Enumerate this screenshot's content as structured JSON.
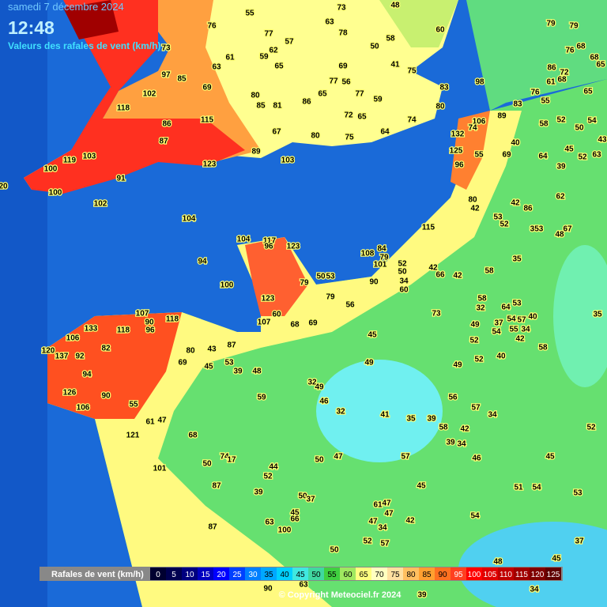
{
  "header": {
    "date": "samedi 7 décembre 2024",
    "time": "12:48",
    "subtitle": "Valeurs des rafales de vent (km/h)"
  },
  "stations": [
    79,
    79,
    48,
    73,
    55,
    76,
    63,
    77,
    78,
    57,
    58,
    60,
    68,
    76,
    68,
    65,
    62,
    59,
    61,
    50,
    69,
    65,
    63,
    41,
    86,
    61,
    72,
    68,
    75,
    97,
    85,
    77,
    56,
    98,
    83,
    76,
    69,
    65,
    77,
    55,
    65,
    102,
    73,
    80,
    85,
    81,
    86,
    59,
    80,
    83,
    118,
    72,
    65,
    74,
    89,
    106,
    52,
    54,
    50,
    58,
    86,
    115,
    67,
    80,
    75,
    64,
    132,
    74,
    40,
    45,
    43,
    87,
    103,
    119,
    89,
    103,
    125,
    55,
    69,
    64,
    52,
    63,
    123,
    100,
    91,
    96,
    39,
    100,
    20,
    102,
    80,
    42,
    62,
    53,
    42,
    86,
    104,
    52,
    353,
    48,
    67,
    115,
    104,
    117,
    96,
    123,
    84,
    108,
    79,
    35,
    94,
    52,
    101,
    50,
    42,
    66,
    42,
    58,
    100,
    79,
    50,
    53,
    90,
    34,
    60,
    123,
    79,
    58,
    56,
    32,
    64,
    53,
    40,
    35,
    60,
    73,
    107,
    90,
    118,
    96,
    118,
    133,
    107,
    68,
    69,
    49,
    37,
    54,
    57,
    106,
    55,
    34,
    54,
    82,
    80,
    43,
    87,
    45,
    42,
    52,
    120,
    137,
    92,
    58,
    53,
    69,
    45,
    49,
    40,
    52,
    49,
    39,
    48,
    94,
    32,
    49,
    126,
    90,
    59,
    46,
    56,
    106,
    55,
    57,
    32,
    41,
    35,
    39,
    34,
    61,
    47,
    58,
    42,
    52,
    121,
    68,
    39,
    34,
    50,
    47,
    57,
    46,
    45,
    74,
    17,
    50,
    44,
    101,
    52,
    87,
    45,
    51,
    54,
    53,
    39,
    50,
    37,
    61,
    47,
    47,
    42,
    45,
    66,
    63,
    47,
    34,
    54,
    87,
    100,
    37,
    52,
    57,
    50,
    48,
    45,
    90,
    63,
    39,
    34
  ],
  "legend": {
    "title": "Rafales de vent (km/h)",
    "steps": [
      {
        "value": 0,
        "color": "#000030"
      },
      {
        "value": 5,
        "color": "#000050"
      },
      {
        "value": 10,
        "color": "#000080"
      },
      {
        "value": 15,
        "color": "#0000c0"
      },
      {
        "value": 20,
        "color": "#0000ff"
      },
      {
        "value": 25,
        "color": "#0040ff"
      },
      {
        "value": 30,
        "color": "#0080ff"
      },
      {
        "value": 35,
        "color": "#00a8ff"
      },
      {
        "value": 40,
        "color": "#00d0ff"
      },
      {
        "value": 45,
        "color": "#40e8e0"
      },
      {
        "value": 50,
        "color": "#40d8a0"
      },
      {
        "value": 55,
        "color": "#40d040"
      },
      {
        "value": 60,
        "color": "#a0e860"
      },
      {
        "value": 65,
        "color": "#ffff80"
      },
      {
        "value": 70,
        "color": "#ffffc0"
      },
      {
        "value": 75,
        "color": "#ffe0a0"
      },
      {
        "value": 80,
        "color": "#ffc060"
      },
      {
        "value": 85,
        "color": "#ffa030"
      },
      {
        "value": 90,
        "color": "#ff7020"
      },
      {
        "value": 95,
        "color": "#ff4020"
      },
      {
        "value": 100,
        "color": "#ff0000"
      },
      {
        "value": 105,
        "color": "#e00000"
      },
      {
        "value": 110,
        "color": "#c00000"
      },
      {
        "value": 115,
        "color": "#a00000"
      },
      {
        "value": 120,
        "color": "#800000"
      },
      {
        "value": 125,
        "color": "#600000"
      }
    ]
  },
  "copyright": "© Copyright Meteociel.fr 2024"
}
